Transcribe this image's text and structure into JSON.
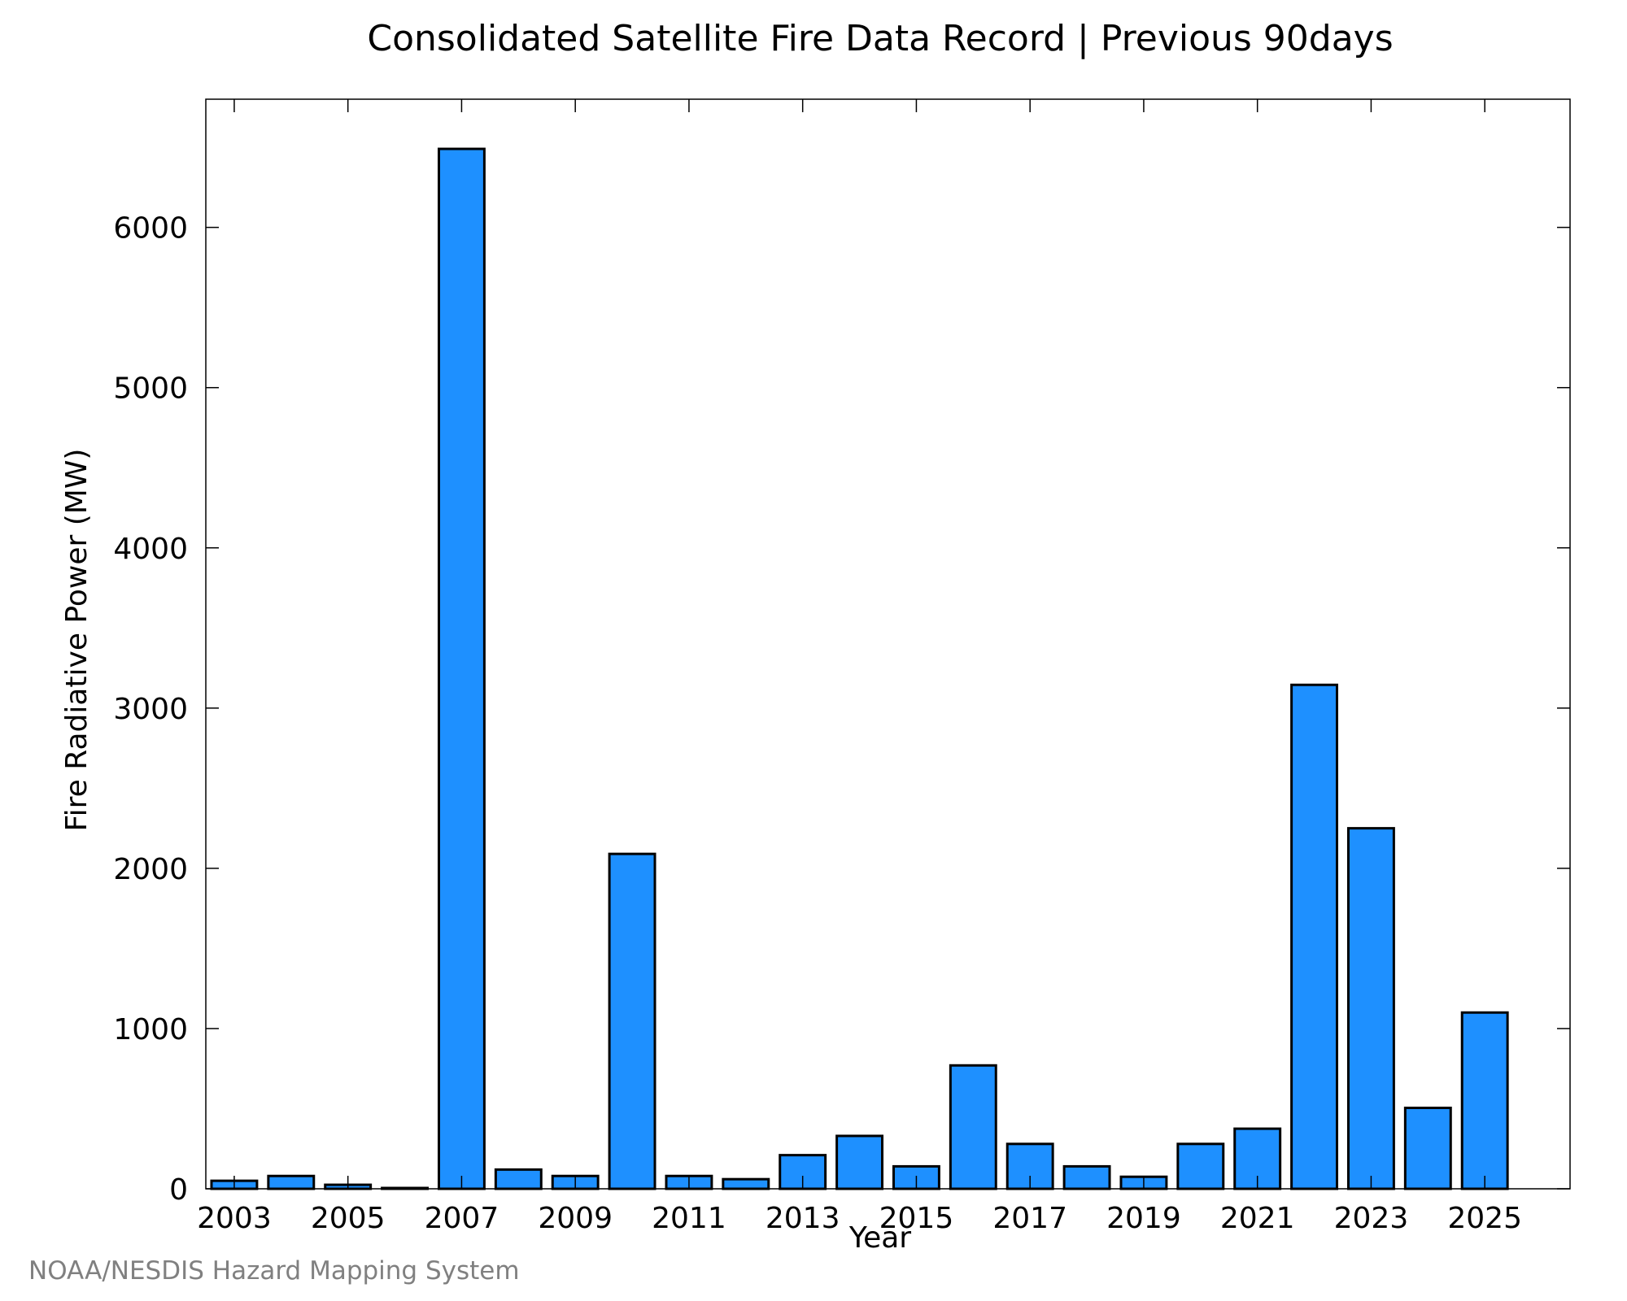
{
  "chart_data": {
    "type": "bar",
    "title": "Consolidated Satellite Fire Data Record | Previous 90days",
    "xlabel": "Year",
    "ylabel": "Fire Radiative Power (MW)",
    "xlim": [
      2002.5,
      2026.5
    ],
    "ylim": [
      0,
      6800
    ],
    "x": [
      2003,
      2004,
      2005,
      2006,
      2007,
      2008,
      2009,
      2010,
      2011,
      2012,
      2013,
      2014,
      2015,
      2016,
      2017,
      2018,
      2019,
      2020,
      2021,
      2022,
      2023,
      2024,
      2025
    ],
    "values": [
      50,
      80,
      25,
      5,
      6490,
      120,
      80,
      2090,
      80,
      60,
      210,
      330,
      140,
      770,
      280,
      140,
      75,
      280,
      375,
      3145,
      2250,
      505,
      1100
    ],
    "xticks": [
      2003,
      2005,
      2007,
      2009,
      2011,
      2013,
      2015,
      2017,
      2019,
      2021,
      2023,
      2025
    ],
    "yticks": [
      0,
      1000,
      2000,
      3000,
      4000,
      5000,
      6000
    ],
    "grid": false,
    "bar_color": "#1e90ff",
    "credit": "NOAA/NESDIS Hazard Mapping System"
  }
}
